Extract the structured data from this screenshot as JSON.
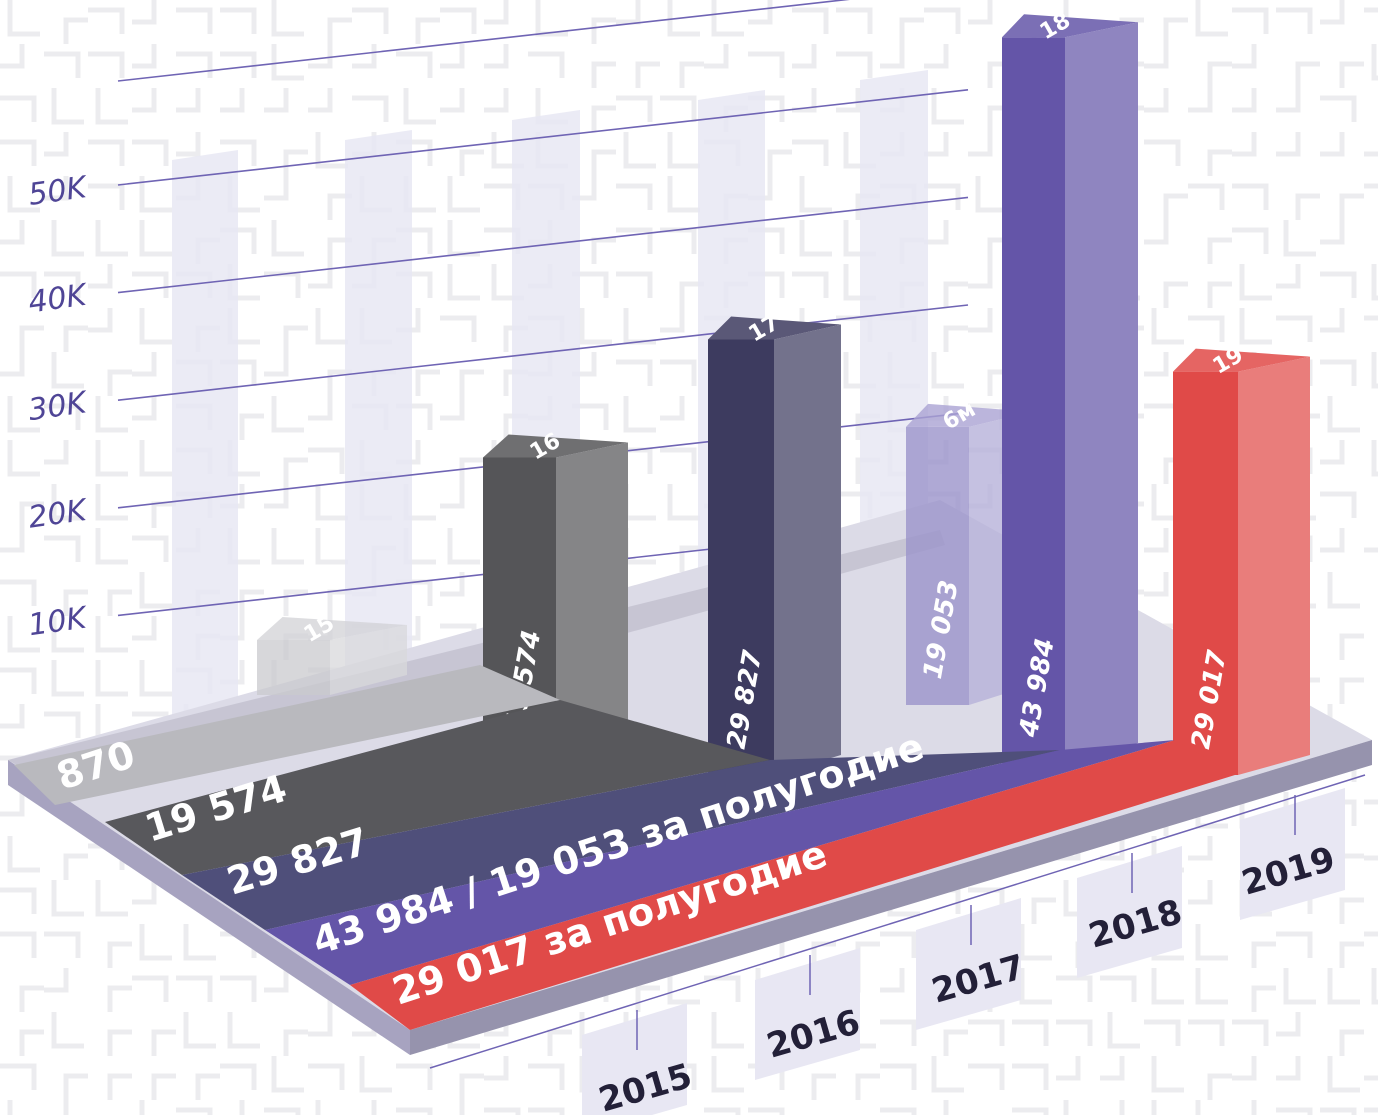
{
  "chart_data": {
    "type": "bar",
    "ylim": [
      0,
      50000
    ],
    "y_ticks": [
      "10K",
      "20K",
      "30K",
      "40K",
      "50K"
    ],
    "categories": [
      "2015",
      "2016",
      "2017",
      "2018",
      "2019"
    ],
    "bars": [
      {
        "category": "2015",
        "value": 870,
        "value_label": "870",
        "top_label": "15",
        "color": "#c9c9cd"
      },
      {
        "category": "2016",
        "value": 19574,
        "value_label": "19 574",
        "top_label": "16",
        "color": "#555558"
      },
      {
        "category": "2017",
        "value": 29827,
        "value_label": "29 827",
        "top_label": "17",
        "color": "#3d3b5f"
      },
      {
        "category": "2018",
        "value": 19053,
        "value_label": "19 053",
        "top_label": "6м",
        "color": "#9b93cb"
      },
      {
        "category": "2018",
        "value": 43984,
        "value_label": "43 984",
        "top_label": "18",
        "color": "#6455a8"
      },
      {
        "category": "2019",
        "value": 29017,
        "value_label": "29 017",
        "top_label": "19",
        "color": "#e04a48"
      }
    ],
    "bands": [
      {
        "text": "870",
        "color": "#b9b9be"
      },
      {
        "text": "19 574",
        "color": "#58585c"
      },
      {
        "text": "29 827",
        "color": "#4f4f7a"
      },
      {
        "text": "43 984    / 19 053 за полугодие",
        "color": "#6455a8"
      },
      {
        "text": "29 017 за полугодие",
        "color": "#e04a48"
      }
    ],
    "colors": {
      "grid_line": "#6f64b4",
      "column_strip": "#e8e7f3",
      "platform_top": "#dcdbe7",
      "platform_edge": "#a7a3c0",
      "maze_pattern": "#ececef",
      "year_tab": "#e8e7f3"
    }
  }
}
